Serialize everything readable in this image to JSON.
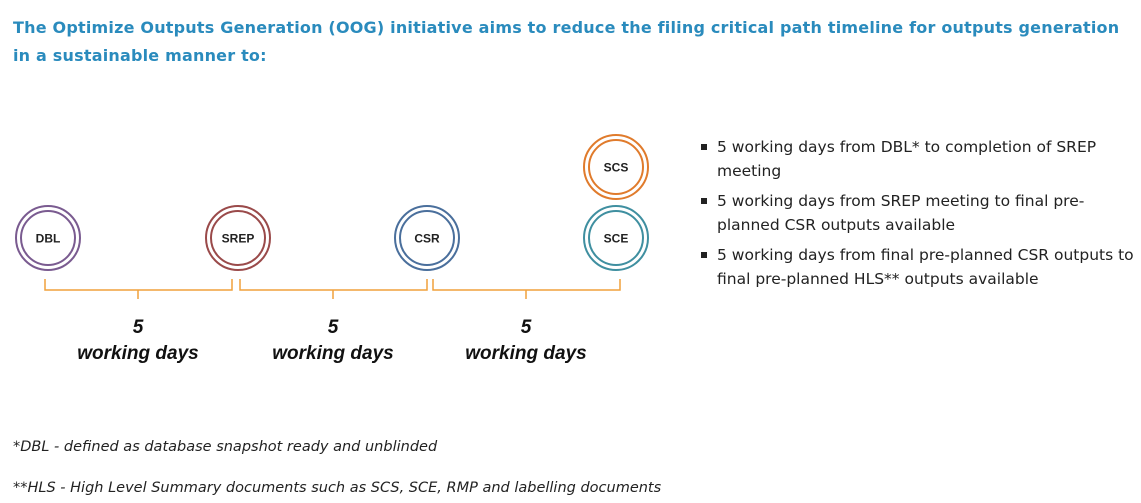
{
  "heading": "The Optimize Outputs Generation (OOG) initiative aims to reduce the filing critical path timeline for outputs generation in a sustainable manner to:",
  "milestones": [
    {
      "label": "DBL",
      "color": "#7a5b90"
    },
    {
      "label": "SREP",
      "color": "#9a4a4a"
    },
    {
      "label": "CSR",
      "color": "#4a6f9c"
    },
    {
      "label": "SCE",
      "color": "#3f8fa0"
    },
    {
      "label": "SCS",
      "color": "#e07b2c"
    }
  ],
  "intervals": [
    {
      "number": "5",
      "unit": "working days"
    },
    {
      "number": "5",
      "unit": "working days"
    },
    {
      "number": "5",
      "unit": "working days"
    }
  ],
  "bracket_color": "#f0a13c",
  "bullets": [
    "5 working days from DBL* to completion of SREP meeting",
    "5 working days from SREP meeting to final pre-planned CSR outputs available",
    "5 working days from final pre-planned CSR outputs to final pre-planned HLS** outputs available"
  ],
  "footnotes": [
    "*DBL - defined as database snapshot ready and unblinded",
    "**HLS - High Level Summary documents such as SCS, SCE, RMP and labelling documents"
  ]
}
